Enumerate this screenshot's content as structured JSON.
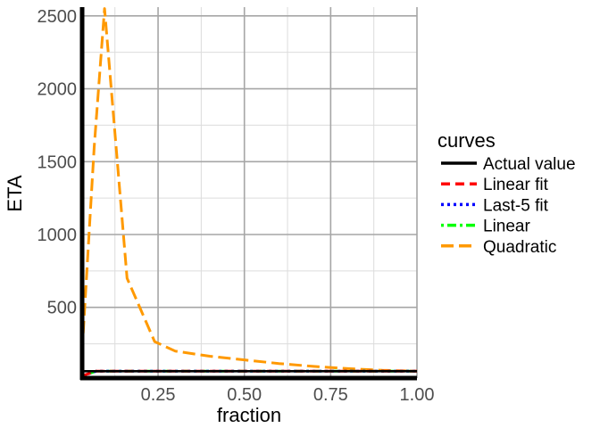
{
  "chart_data": {
    "type": "line",
    "xlabel": "fraction",
    "ylabel": "ETA",
    "xlim": [
      0.03,
      1.0
    ],
    "ylim": [
      15,
      2560
    ],
    "x_ticks": [
      0.25,
      0.5,
      0.75,
      1.0
    ],
    "x_tick_labels": [
      "0.25",
      "0.50",
      "0.75",
      "1.00"
    ],
    "y_ticks": [
      500,
      1000,
      1500,
      2000,
      2500
    ],
    "y_tick_labels": [
      "500",
      "1000",
      "1500",
      "2000",
      "2500"
    ],
    "grid": true,
    "legend": {
      "title": "curves",
      "position": "right",
      "items": [
        {
          "label": "Actual value",
          "color": "#000000",
          "style": "solid"
        },
        {
          "label": "Linear fit",
          "color": "#ff0000",
          "style": "dashed"
        },
        {
          "label": "Last-5 fit",
          "color": "#0000ff",
          "style": "dotted"
        },
        {
          "label": "Linear",
          "color": "#00ff00",
          "style": "dotdash"
        },
        {
          "label": "Quadratic",
          "color": "#ff9900",
          "style": "longdash"
        }
      ]
    },
    "series": [
      {
        "name": "Actual value",
        "color": "#000000",
        "style": "solid",
        "x": [
          0.03,
          1.0
        ],
        "y": [
          62,
          62
        ]
      },
      {
        "name": "Linear fit",
        "color": "#ff0000",
        "style": "dashed",
        "x": [
          0.03,
          0.07,
          1.0
        ],
        "y": [
          30,
          62,
          62
        ]
      },
      {
        "name": "Last-5 fit",
        "color": "#0000ff",
        "style": "dotted",
        "x": [
          0.03,
          0.07,
          1.0
        ],
        "y": [
          30,
          62,
          62
        ]
      },
      {
        "name": "Linear",
        "color": "#00ff00",
        "style": "dotdash",
        "x": [
          0.03,
          0.07,
          1.0
        ],
        "y": [
          30,
          62,
          62
        ]
      },
      {
        "name": "Quadratic",
        "color": "#ff9900",
        "style": "longdash",
        "x": [
          0.03,
          0.065,
          0.095,
          0.16,
          0.24,
          0.3,
          0.4,
          0.5,
          0.6,
          0.7,
          0.8,
          0.9,
          1.0
        ],
        "y": [
          200,
          1600,
          2550,
          700,
          265,
          200,
          165,
          140,
          115,
          95,
          80,
          68,
          62
        ]
      }
    ]
  }
}
